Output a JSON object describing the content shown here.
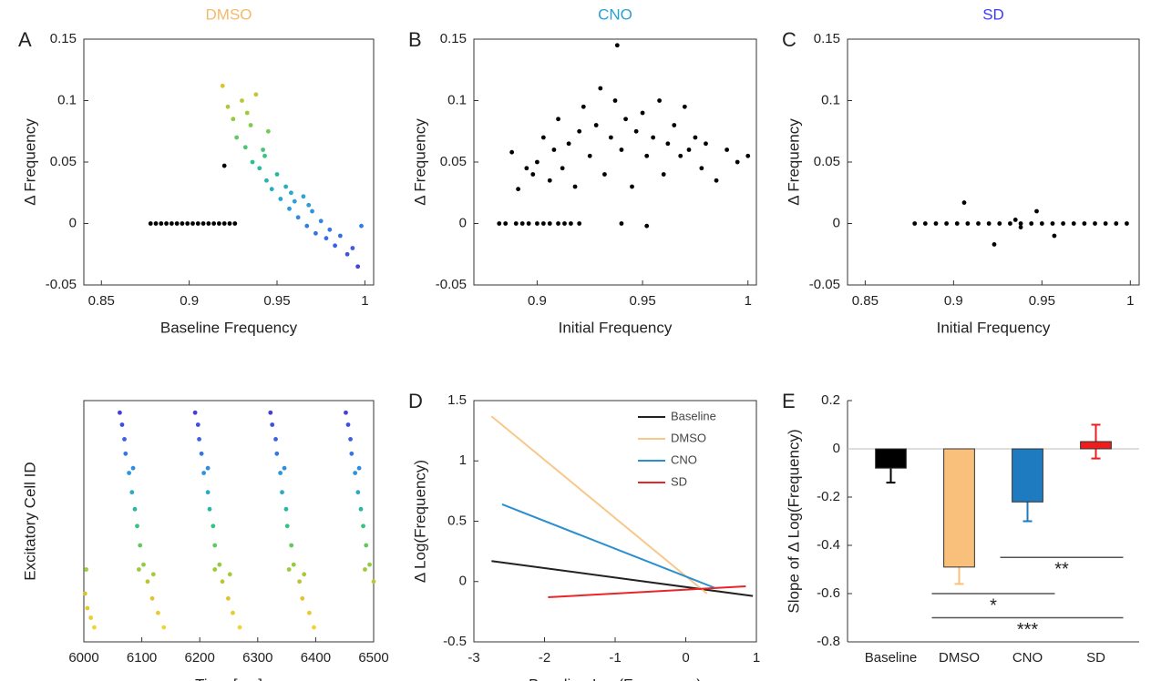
{
  "chart_data": [
    {
      "type": "scatter",
      "panel_label": "A",
      "title": "DMSO",
      "title_color": "#f5b96a",
      "xlabel": "Baseline Frequency",
      "ylabel": "Δ Frequency",
      "xlim": [
        0.84,
        1.005
      ],
      "xticks": [
        0.85,
        0.9,
        0.95,
        1
      ],
      "ylim": [
        -0.05,
        0.15
      ],
      "yticks": [
        -0.05,
        0,
        0.05,
        0.1,
        0.15
      ],
      "box": true,
      "series": [
        {
          "color": "#000000",
          "x": [
            0.878,
            0.881,
            0.884,
            0.887,
            0.89,
            0.893,
            0.896,
            0.899,
            0.902,
            0.905,
            0.908,
            0.911,
            0.914,
            0.917,
            0.92,
            0.923,
            0.926,
            0.92
          ],
          "values": [
            0,
            0,
            0,
            0,
            0,
            0,
            0,
            0,
            0,
            0,
            0,
            0,
            0,
            0,
            0,
            0,
            0,
            0.047
          ]
        },
        {
          "cmap": [
            "#4a2fd6",
            "#3a62e6",
            "#2aa0dc",
            "#26c28e",
            "#8ccc40",
            "#e6c22e",
            "#f2cc2a"
          ],
          "x": [
            0.919,
            0.922,
            0.925,
            0.927,
            0.93,
            0.932,
            0.935,
            0.936,
            0.938,
            0.94,
            0.942,
            0.944,
            0.945,
            0.947,
            0.95,
            0.952,
            0.955,
            0.957,
            0.96,
            0.962,
            0.965,
            0.967,
            0.97,
            0.972,
            0.975,
            0.978,
            0.98,
            0.983,
            0.986,
            0.99,
            0.993,
            0.996,
            0.998,
            0.933,
            0.943,
            0.958,
            0.968
          ],
          "values": [
            0.112,
            0.095,
            0.085,
            0.07,
            0.1,
            0.062,
            0.08,
            0.05,
            0.105,
            0.045,
            0.06,
            0.035,
            0.075,
            0.028,
            0.04,
            0.02,
            0.03,
            0.012,
            0.018,
            0.005,
            0.022,
            -0.002,
            0.01,
            -0.008,
            0.002,
            -0.012,
            -0.005,
            -0.018,
            -0.01,
            -0.025,
            -0.02,
            -0.035,
            -0.002,
            0.09,
            0.055,
            0.025,
            0.015
          ]
        }
      ]
    },
    {
      "type": "scatter",
      "panel_label": "B",
      "title": "CNO",
      "title_color": "#2a9fd6",
      "xlabel": "Initial Frequency",
      "ylabel": "Δ Frequency",
      "xlim": [
        0.87,
        1.004
      ],
      "xticks": [
        0.9,
        0.95,
        1
      ],
      "ylim": [
        -0.05,
        0.15
      ],
      "yticks": [
        -0.05,
        0,
        0.05,
        0.1,
        0.15
      ],
      "box": true,
      "series": [
        {
          "color": "#000000",
          "x": [
            0.882,
            0.885,
            0.89,
            0.893,
            0.896,
            0.9,
            0.903,
            0.906,
            0.91,
            0.913,
            0.916,
            0.92,
            0.888,
            0.891,
            0.895,
            0.898,
            0.9,
            0.903,
            0.906,
            0.908,
            0.91,
            0.912,
            0.915,
            0.918,
            0.92,
            0.922,
            0.925,
            0.928,
            0.93,
            0.932,
            0.935,
            0.937,
            0.938,
            0.94,
            0.942,
            0.945,
            0.947,
            0.95,
            0.952,
            0.955,
            0.958,
            0.96,
            0.962,
            0.965,
            0.968,
            0.97,
            0.972,
            0.975,
            0.978,
            0.98,
            0.985,
            0.99,
            0.995,
            1.0,
            0.94,
            0.952
          ],
          "values": [
            0,
            0,
            0,
            0,
            0,
            0,
            0,
            0,
            0,
            0,
            0,
            0,
            0.058,
            0.028,
            0.045,
            0.04,
            0.05,
            0.07,
            0.035,
            0.06,
            0.085,
            0.045,
            0.065,
            0.03,
            0.075,
            0.095,
            0.055,
            0.08,
            0.11,
            0.04,
            0.07,
            0.1,
            0.145,
            0.06,
            0.085,
            0.03,
            0.075,
            0.09,
            0.055,
            0.07,
            0.1,
            0.04,
            0.065,
            0.08,
            0.055,
            0.095,
            0.06,
            0.07,
            0.045,
            0.065,
            0.035,
            0.06,
            0.05,
            0.055,
            0,
            -0.002
          ]
        }
      ]
    },
    {
      "type": "scatter",
      "panel_label": "C",
      "title": "SD",
      "title_color": "#3b3bff",
      "xlabel": "Initial Frequency",
      "ylabel": "Δ Frequency",
      "xlim": [
        0.84,
        1.005
      ],
      "xticks": [
        0.85,
        0.9,
        0.95,
        1
      ],
      "ylim": [
        -0.05,
        0.15
      ],
      "yticks": [
        -0.05,
        0,
        0.05,
        0.1,
        0.15
      ],
      "box": true,
      "series": [
        {
          "color": "#000000",
          "x": [
            0.878,
            0.884,
            0.89,
            0.896,
            0.902,
            0.908,
            0.914,
            0.92,
            0.926,
            0.932,
            0.938,
            0.944,
            0.95,
            0.956,
            0.962,
            0.968,
            0.974,
            0.98,
            0.986,
            0.992,
            0.998,
            0.906,
            0.923,
            0.935,
            0.938,
            0.947,
            0.957
          ],
          "values": [
            0,
            0,
            0,
            0,
            0,
            0,
            0,
            0,
            0,
            0,
            0,
            0,
            0,
            0,
            0,
            0,
            0,
            0,
            0,
            0,
            0,
            0.017,
            -0.017,
            0.003,
            -0.003,
            0.01,
            -0.01
          ]
        }
      ]
    },
    {
      "type": "scatter",
      "xlabel": "Time [ms]",
      "ylabel": "Excitatory Cell ID",
      "xlim": [
        6000,
        6500
      ],
      "xticks": [
        6000,
        6100,
        6200,
        6300,
        6400,
        6500
      ],
      "ylim": [
        0,
        1
      ],
      "box": true,
      "series": [
        {
          "cmap": [
            "#f2e030",
            "#e6c22e",
            "#8ccc40",
            "#26c28e",
            "#2aa0dc",
            "#3a62e6",
            "#4a2fd6"
          ],
          "x": [
            6062,
            6066,
            6070,
            6072,
            6078,
            6083,
            6088,
            6092,
            6097,
            6103,
            6110,
            6118,
            6128,
            6138,
            6095,
            6120,
            6085,
            6192,
            6197,
            6199,
            6203,
            6207,
            6214,
            6217,
            6223,
            6226,
            6234,
            6239,
            6249,
            6257,
            6269,
            6226,
            6252,
            6214,
            6322,
            6325,
            6331,
            6333,
            6339,
            6342,
            6349,
            6351,
            6358,
            6362,
            6372,
            6377,
            6389,
            6397,
            6354,
            6380,
            6346,
            6452,
            6456,
            6460,
            6462,
            6468,
            6473,
            6478,
            6482,
            6487,
            6493,
            6500,
            6485,
            6475,
            6002,
            6006,
            6012,
            6018,
            6004
          ],
          "values": [
            0.95,
            0.9,
            0.84,
            0.78,
            0.7,
            0.62,
            0.55,
            0.48,
            0.4,
            0.32,
            0.25,
            0.18,
            0.12,
            0.06,
            0.3,
            0.28,
            0.72,
            0.95,
            0.9,
            0.84,
            0.78,
            0.7,
            0.62,
            0.55,
            0.48,
            0.4,
            0.32,
            0.25,
            0.18,
            0.12,
            0.06,
            0.3,
            0.28,
            0.72,
            0.95,
            0.9,
            0.84,
            0.78,
            0.7,
            0.62,
            0.55,
            0.48,
            0.4,
            0.32,
            0.25,
            0.18,
            0.12,
            0.06,
            0.3,
            0.28,
            0.72,
            0.95,
            0.9,
            0.84,
            0.78,
            0.7,
            0.62,
            0.55,
            0.48,
            0.4,
            0.32,
            0.25,
            0.3,
            0.72,
            0.2,
            0.14,
            0.1,
            0.06,
            0.3
          ]
        }
      ]
    },
    {
      "type": "line",
      "panel_label": "D",
      "xlabel": "Baseline Log(Frequency)",
      "ylabel": "Δ Log(Frequency)",
      "xlim": [
        -3,
        1
      ],
      "xticks": [
        -3,
        -2,
        -1,
        0,
        1
      ],
      "ylim": [
        -0.5,
        1.5
      ],
      "yticks": [
        -0.5,
        0,
        0.5,
        1,
        1.5
      ],
      "box": true,
      "legend": "top-right",
      "series": [
        {
          "name": "Baseline",
          "color": "#222222",
          "x": [
            -2.75,
            0.95
          ],
          "values": [
            0.17,
            -0.12
          ]
        },
        {
          "name": "DMSO",
          "color": "#f8c88a",
          "x": [
            -2.75,
            0.3
          ],
          "values": [
            1.37,
            -0.1
          ]
        },
        {
          "name": "CNO",
          "color": "#2a8fd0",
          "x": [
            -2.6,
            0.4
          ],
          "values": [
            0.64,
            -0.05
          ]
        },
        {
          "name": "SD",
          "color": "#e8262a",
          "x": [
            -1.95,
            0.85
          ],
          "values": [
            -0.13,
            -0.04
          ]
        }
      ]
    },
    {
      "type": "bar",
      "panel_label": "E",
      "ylabel": "Slope of  Δ Log(Frequency)",
      "categories": [
        "Baseline",
        "DMSO",
        "CNO",
        "SD"
      ],
      "values": [
        -0.08,
        -0.49,
        -0.22,
        0.03
      ],
      "errors": [
        0.06,
        0.07,
        0.08,
        0.07
      ],
      "colors": [
        "#000000",
        "#f8c07a",
        "#1f7bbf",
        "#ee1c1c"
      ],
      "ylim": [
        -0.8,
        0.2
      ],
      "yticks": [
        -0.8,
        -0.6,
        -0.4,
        -0.2,
        0,
        0.2
      ],
      "box": false,
      "zero_line": true,
      "annotations": [
        {
          "text": "*",
          "from": "DMSO",
          "to": "CNO",
          "y": -0.6
        },
        {
          "text": "**",
          "from": "CNO",
          "to": "SD",
          "y": -0.45
        },
        {
          "text": "***",
          "from": "DMSO",
          "to": "SD",
          "y": -0.7
        }
      ]
    }
  ]
}
